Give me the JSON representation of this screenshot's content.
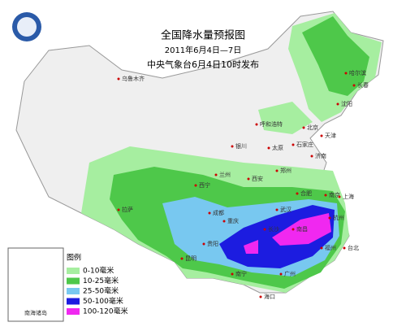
{
  "header": {
    "title": "全国降水量预报图",
    "period": "2011年6月4日—7日",
    "issuer": "中央气象台6月4日10时发布"
  },
  "legend": {
    "title": "图例",
    "items": [
      {
        "label": "0-10毫米",
        "color": "#a6eea0"
      },
      {
        "label": "10-25毫米",
        "color": "#4ec84a"
      },
      {
        "label": "25-50毫米",
        "color": "#78c8f0"
      },
      {
        "label": "50-100毫米",
        "color": "#1c1ce0"
      },
      {
        "label": "100-120毫米",
        "color": "#f028f0"
      }
    ]
  },
  "inset": {
    "label": "南海诸岛"
  },
  "cities": [
    "乌鲁木齐",
    "哈尔滨",
    "长春",
    "沈阳",
    "呼和浩特",
    "北京",
    "天津",
    "太原",
    "石家庄",
    "济南",
    "银川",
    "兰州",
    "西宁",
    "西安",
    "郑州",
    "合肥",
    "南京",
    "上海",
    "武汉",
    "杭州",
    "长沙",
    "南昌",
    "福州",
    "成都",
    "重庆",
    "贵阳",
    "昆明",
    "南宁",
    "广州",
    "台北",
    "海口",
    "拉萨"
  ]
}
